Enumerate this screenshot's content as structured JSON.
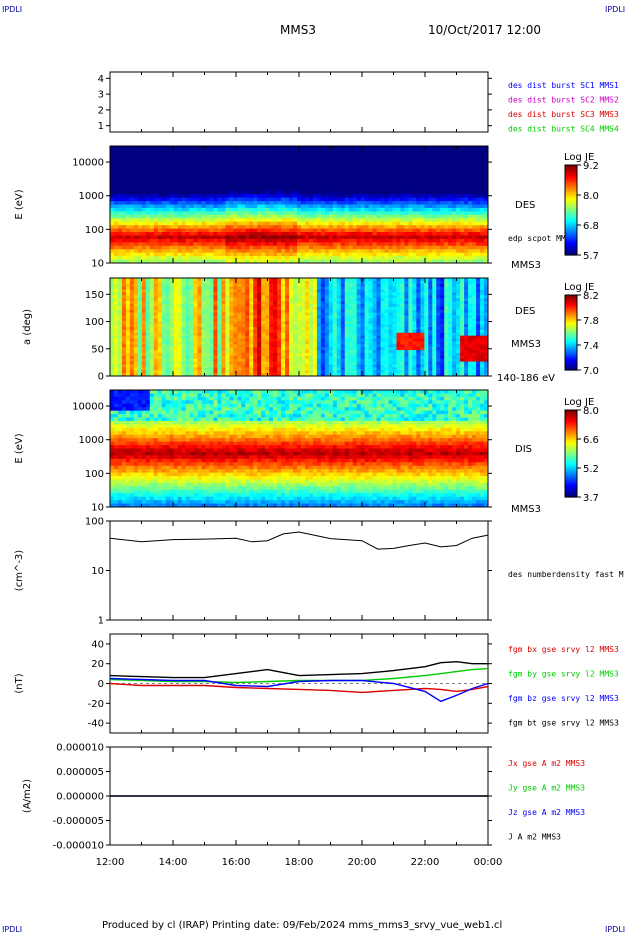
{
  "header": {
    "corner_tl": "IPDLI",
    "corner_tr": "IPDLI",
    "corner_bl": "IPDLI",
    "corner_br": "IPDLI",
    "title": "MMS3",
    "datetime": "10/Oct/2017 12:00"
  },
  "footer": {
    "text": "Produced by cl (IRAP)   Printing date: 09/Feb/2024   mms_mms3_srvy_vue_web1.cl"
  },
  "chart_data": [
    {
      "type": "line",
      "panel": "availability",
      "yticks": [
        "1",
        "2",
        "3",
        "4"
      ],
      "ylim": [
        0.6,
        4.4
      ],
      "series": [
        {
          "name": "des dist burst SC1 MMS1",
          "color": "#0000ff",
          "values": []
        },
        {
          "name": "des dist burst SC2 MMS2",
          "color": "#cc00cc",
          "values": []
        },
        {
          "name": "des dist burst SC3 MMS3",
          "color": "#dd0000",
          "values": []
        },
        {
          "name": "des dist burst SC4 MMS4",
          "color": "#00cc00",
          "values": []
        }
      ]
    },
    {
      "type": "heatmap",
      "panel": "des-energy",
      "ylabel": "E (eV)",
      "yscale": "log",
      "ylim": [
        10,
        30000
      ],
      "yticks": [
        "10",
        "100",
        "1000",
        "10000"
      ],
      "label": "DES",
      "sublabel": "edp scpot MMS3",
      "sc": "MMS3",
      "colorbar": {
        "title": "Log JE",
        "ticks": [
          "9.2",
          "8.0",
          "6.8",
          "5.7"
        ],
        "range": [
          5.7,
          9.2
        ]
      },
      "peak_energy_ev": 60
    },
    {
      "type": "heatmap",
      "panel": "des-pitch",
      "ylabel": "a (deg)",
      "ylim": [
        0,
        180
      ],
      "yticks": [
        "0",
        "50",
        "100",
        "150"
      ],
      "label": "DES",
      "sc": "MMS3",
      "energy_band": "140-186 eV",
      "colorbar": {
        "title": "Log JE",
        "ticks": [
          "8.2",
          "7.8",
          "7.4",
          "7.0"
        ],
        "range": [
          7.0,
          8.2
        ]
      }
    },
    {
      "type": "heatmap",
      "panel": "dis-energy",
      "ylabel": "E (eV)",
      "yscale": "log",
      "ylim": [
        10,
        30000
      ],
      "yticks": [
        "10",
        "100",
        "1000",
        "10000"
      ],
      "label": "DIS",
      "sc": "MMS3",
      "colorbar": {
        "title": "Log JE",
        "ticks": [
          "8.0",
          "6.6",
          "5.2",
          "3.7"
        ],
        "range": [
          3.7,
          8.0
        ]
      },
      "peak_energy_ev": 400
    },
    {
      "type": "line",
      "panel": "density",
      "ylabel": "(cm^-3)",
      "yscale": "log",
      "ylim": [
        1,
        100
      ],
      "yticks": [
        "1",
        "10",
        "100"
      ],
      "x": [
        12,
        13,
        14,
        15,
        16,
        16.5,
        17,
        17.5,
        18,
        19,
        20,
        20.5,
        21,
        21.5,
        22,
        22.5,
        23,
        23.5,
        24
      ],
      "series": [
        {
          "name": "des numberdensity fast M",
          "color": "#000000",
          "values": [
            45,
            38,
            42,
            43,
            45,
            38,
            40,
            55,
            60,
            44,
            40,
            27,
            28,
            32,
            36,
            30,
            32,
            45,
            52
          ]
        }
      ]
    },
    {
      "type": "line",
      "panel": "magnetic-field",
      "ylabel": "(nT)",
      "ylim": [
        -50,
        50
      ],
      "yticks": [
        "-40",
        "-20",
        "0",
        "20",
        "40"
      ],
      "x": [
        12,
        13,
        14,
        15,
        16,
        17,
        18,
        19,
        20,
        21,
        22,
        22.5,
        23,
        23.5,
        24
      ],
      "series": [
        {
          "name": "fgm bx gse srvy l2 MMS3",
          "color": "#dd0000",
          "values": [
            0,
            -2,
            -2,
            -2,
            -4,
            -5,
            -6,
            -7,
            -9,
            -7,
            -5,
            -6,
            -8,
            -6,
            -3
          ]
        },
        {
          "name": "fgm by gse srvy l2 MMS3",
          "color": "#00cc00",
          "values": [
            4,
            3,
            2,
            2,
            1,
            2,
            3,
            3,
            3,
            5,
            8,
            10,
            12,
            14,
            15
          ]
        },
        {
          "name": "fgm bz gse srvy l2 MMS3",
          "color": "#0000ff",
          "values": [
            5,
            4,
            3,
            3,
            -2,
            -3,
            2,
            3,
            3,
            0,
            -8,
            -18,
            -12,
            -5,
            0
          ]
        },
        {
          "name": "fgm bt gse srvy l2 MMS3",
          "color": "#000000",
          "values": [
            8,
            7,
            6,
            6,
            10,
            14,
            8,
            9,
            10,
            13,
            17,
            21,
            22,
            20,
            20
          ]
        }
      ]
    },
    {
      "type": "line",
      "panel": "current-density",
      "ylabel": "(A/m2)",
      "ylim": [
        -1e-05,
        1e-05
      ],
      "yticks": [
        "-0.000010",
        "-0.000005",
        "0.000000",
        "0.000005",
        "0.000010"
      ],
      "series": [
        {
          "name": "Jx gse A m2 MMS3",
          "color": "#dd0000",
          "values": []
        },
        {
          "name": "Jy gse A m2 MMS3",
          "color": "#00cc00",
          "values": []
        },
        {
          "name": "Jz gse A m2 MMS3",
          "color": "#0000ff",
          "values": []
        },
        {
          "name": "J A m2 MMS3",
          "color": "#000000",
          "values": []
        }
      ]
    }
  ],
  "x_axis": {
    "ticks": [
      "12:00",
      "14:00",
      "16:00",
      "18:00",
      "20:00",
      "22:00",
      "00:00"
    ],
    "range_hours": [
      12,
      24
    ]
  }
}
